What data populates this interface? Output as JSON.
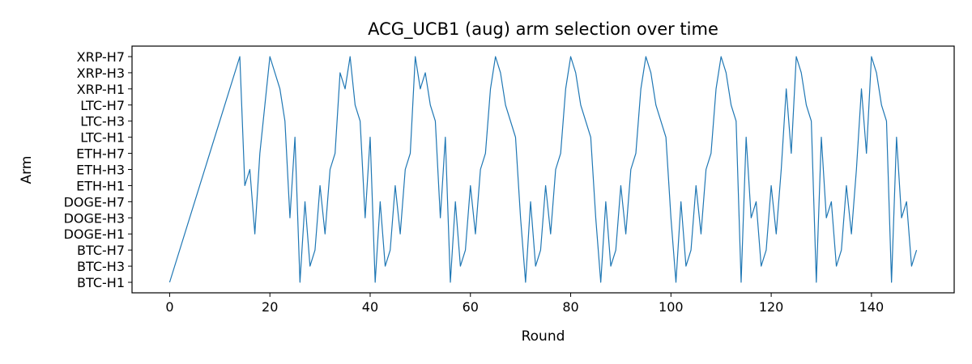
{
  "chart_data": {
    "type": "line",
    "title": "ACG_UCB1 (aug) arm selection over time",
    "xlabel": "Round",
    "ylabel": "Arm",
    "xlim": [
      -7.5,
      156.5
    ],
    "xticks": [
      0,
      20,
      40,
      60,
      80,
      100,
      120,
      140
    ],
    "categories": [
      "BTC-H1",
      "BTC-H3",
      "BTC-H7",
      "DOGE-H1",
      "DOGE-H3",
      "DOGE-H7",
      "ETH-H1",
      "ETH-H3",
      "ETH-H7",
      "LTC-H1",
      "LTC-H3",
      "LTC-H7",
      "XRP-H1",
      "XRP-H3",
      "XRP-H7"
    ],
    "color": "#1f77b4",
    "grid": false,
    "series": [
      {
        "points": [
          [
            0,
            "BTC-H1"
          ],
          [
            14,
            "XRP-H7"
          ],
          [
            15,
            "ETH-H1"
          ],
          [
            16,
            "ETH-H3"
          ],
          [
            17,
            "DOGE-H1"
          ],
          [
            18,
            "ETH-H7"
          ],
          [
            20,
            "XRP-H7"
          ],
          [
            22,
            "XRP-H1"
          ],
          [
            23,
            "LTC-H3"
          ],
          [
            24,
            "DOGE-H3"
          ],
          [
            25,
            "LTC-H1"
          ],
          [
            26,
            "BTC-H1"
          ],
          [
            27,
            "DOGE-H7"
          ],
          [
            28,
            "BTC-H3"
          ],
          [
            29,
            "BTC-H7"
          ],
          [
            30,
            "ETH-H1"
          ],
          [
            31,
            "DOGE-H1"
          ],
          [
            32,
            "ETH-H3"
          ],
          [
            33,
            "ETH-H7"
          ],
          [
            34,
            "XRP-H3"
          ],
          [
            35,
            "XRP-H1"
          ],
          [
            36,
            "XRP-H7"
          ],
          [
            37,
            "LTC-H7"
          ],
          [
            38,
            "LTC-H3"
          ],
          [
            39,
            "DOGE-H3"
          ],
          [
            40,
            "LTC-H1"
          ],
          [
            41,
            "BTC-H1"
          ],
          [
            42,
            "DOGE-H7"
          ],
          [
            43,
            "BTC-H3"
          ],
          [
            44,
            "BTC-H7"
          ],
          [
            45,
            "ETH-H1"
          ],
          [
            46,
            "DOGE-H1"
          ],
          [
            47,
            "ETH-H3"
          ],
          [
            48,
            "ETH-H7"
          ],
          [
            49,
            "XRP-H7"
          ],
          [
            50,
            "XRP-H1"
          ],
          [
            51,
            "XRP-H3"
          ],
          [
            52,
            "LTC-H7"
          ],
          [
            53,
            "LTC-H3"
          ],
          [
            54,
            "DOGE-H3"
          ],
          [
            55,
            "LTC-H1"
          ],
          [
            56,
            "BTC-H1"
          ],
          [
            57,
            "DOGE-H7"
          ],
          [
            58,
            "BTC-H3"
          ],
          [
            59,
            "BTC-H7"
          ],
          [
            60,
            "ETH-H1"
          ],
          [
            61,
            "DOGE-H1"
          ],
          [
            62,
            "ETH-H3"
          ],
          [
            63,
            "ETH-H7"
          ],
          [
            64,
            "XRP-H1"
          ],
          [
            65,
            "XRP-H7"
          ],
          [
            66,
            "XRP-H3"
          ],
          [
            67,
            "LTC-H7"
          ],
          [
            69,
            "LTC-H1"
          ],
          [
            70,
            "DOGE-H3"
          ],
          [
            71,
            "BTC-H1"
          ],
          [
            72,
            "DOGE-H7"
          ],
          [
            73,
            "BTC-H3"
          ],
          [
            74,
            "BTC-H7"
          ],
          [
            75,
            "ETH-H1"
          ],
          [
            76,
            "DOGE-H1"
          ],
          [
            77,
            "ETH-H3"
          ],
          [
            78,
            "ETH-H7"
          ],
          [
            79,
            "XRP-H1"
          ],
          [
            80,
            "XRP-H7"
          ],
          [
            81,
            "XRP-H3"
          ],
          [
            82,
            "LTC-H7"
          ],
          [
            84,
            "LTC-H1"
          ],
          [
            85,
            "DOGE-H3"
          ],
          [
            86,
            "BTC-H1"
          ],
          [
            87,
            "DOGE-H7"
          ],
          [
            88,
            "BTC-H3"
          ],
          [
            89,
            "BTC-H7"
          ],
          [
            90,
            "ETH-H1"
          ],
          [
            91,
            "DOGE-H1"
          ],
          [
            92,
            "ETH-H3"
          ],
          [
            93,
            "ETH-H7"
          ],
          [
            94,
            "XRP-H1"
          ],
          [
            95,
            "XRP-H7"
          ],
          [
            96,
            "XRP-H3"
          ],
          [
            97,
            "LTC-H7"
          ],
          [
            99,
            "LTC-H1"
          ],
          [
            100,
            "DOGE-H3"
          ],
          [
            101,
            "BTC-H1"
          ],
          [
            102,
            "DOGE-H7"
          ],
          [
            103,
            "BTC-H3"
          ],
          [
            104,
            "BTC-H7"
          ],
          [
            105,
            "ETH-H1"
          ],
          [
            106,
            "DOGE-H1"
          ],
          [
            107,
            "ETH-H3"
          ],
          [
            108,
            "ETH-H7"
          ],
          [
            109,
            "XRP-H1"
          ],
          [
            110,
            "XRP-H7"
          ],
          [
            111,
            "XRP-H3"
          ],
          [
            112,
            "LTC-H7"
          ],
          [
            113,
            "LTC-H3"
          ],
          [
            114,
            "BTC-H1"
          ],
          [
            115,
            "LTC-H1"
          ],
          [
            116,
            "DOGE-H3"
          ],
          [
            117,
            "DOGE-H7"
          ],
          [
            118,
            "BTC-H3"
          ],
          [
            119,
            "BTC-H7"
          ],
          [
            120,
            "ETH-H1"
          ],
          [
            121,
            "DOGE-H1"
          ],
          [
            122,
            "ETH-H3"
          ],
          [
            123,
            "XRP-H1"
          ],
          [
            124,
            "ETH-H7"
          ],
          [
            125,
            "XRP-H7"
          ],
          [
            126,
            "XRP-H3"
          ],
          [
            127,
            "LTC-H7"
          ],
          [
            128,
            "LTC-H3"
          ],
          [
            129,
            "BTC-H1"
          ],
          [
            130,
            "LTC-H1"
          ],
          [
            131,
            "DOGE-H3"
          ],
          [
            132,
            "DOGE-H7"
          ],
          [
            133,
            "BTC-H3"
          ],
          [
            134,
            "BTC-H7"
          ],
          [
            135,
            "ETH-H1"
          ],
          [
            136,
            "DOGE-H1"
          ],
          [
            137,
            "ETH-H3"
          ],
          [
            138,
            "XRP-H1"
          ],
          [
            139,
            "ETH-H7"
          ],
          [
            140,
            "XRP-H7"
          ],
          [
            141,
            "XRP-H3"
          ],
          [
            142,
            "LTC-H7"
          ],
          [
            143,
            "LTC-H3"
          ],
          [
            144,
            "BTC-H1"
          ],
          [
            145,
            "LTC-H1"
          ],
          [
            146,
            "DOGE-H3"
          ],
          [
            147,
            "DOGE-H7"
          ],
          [
            148,
            "BTC-H3"
          ],
          [
            149,
            "BTC-H7"
          ]
        ]
      }
    ]
  }
}
